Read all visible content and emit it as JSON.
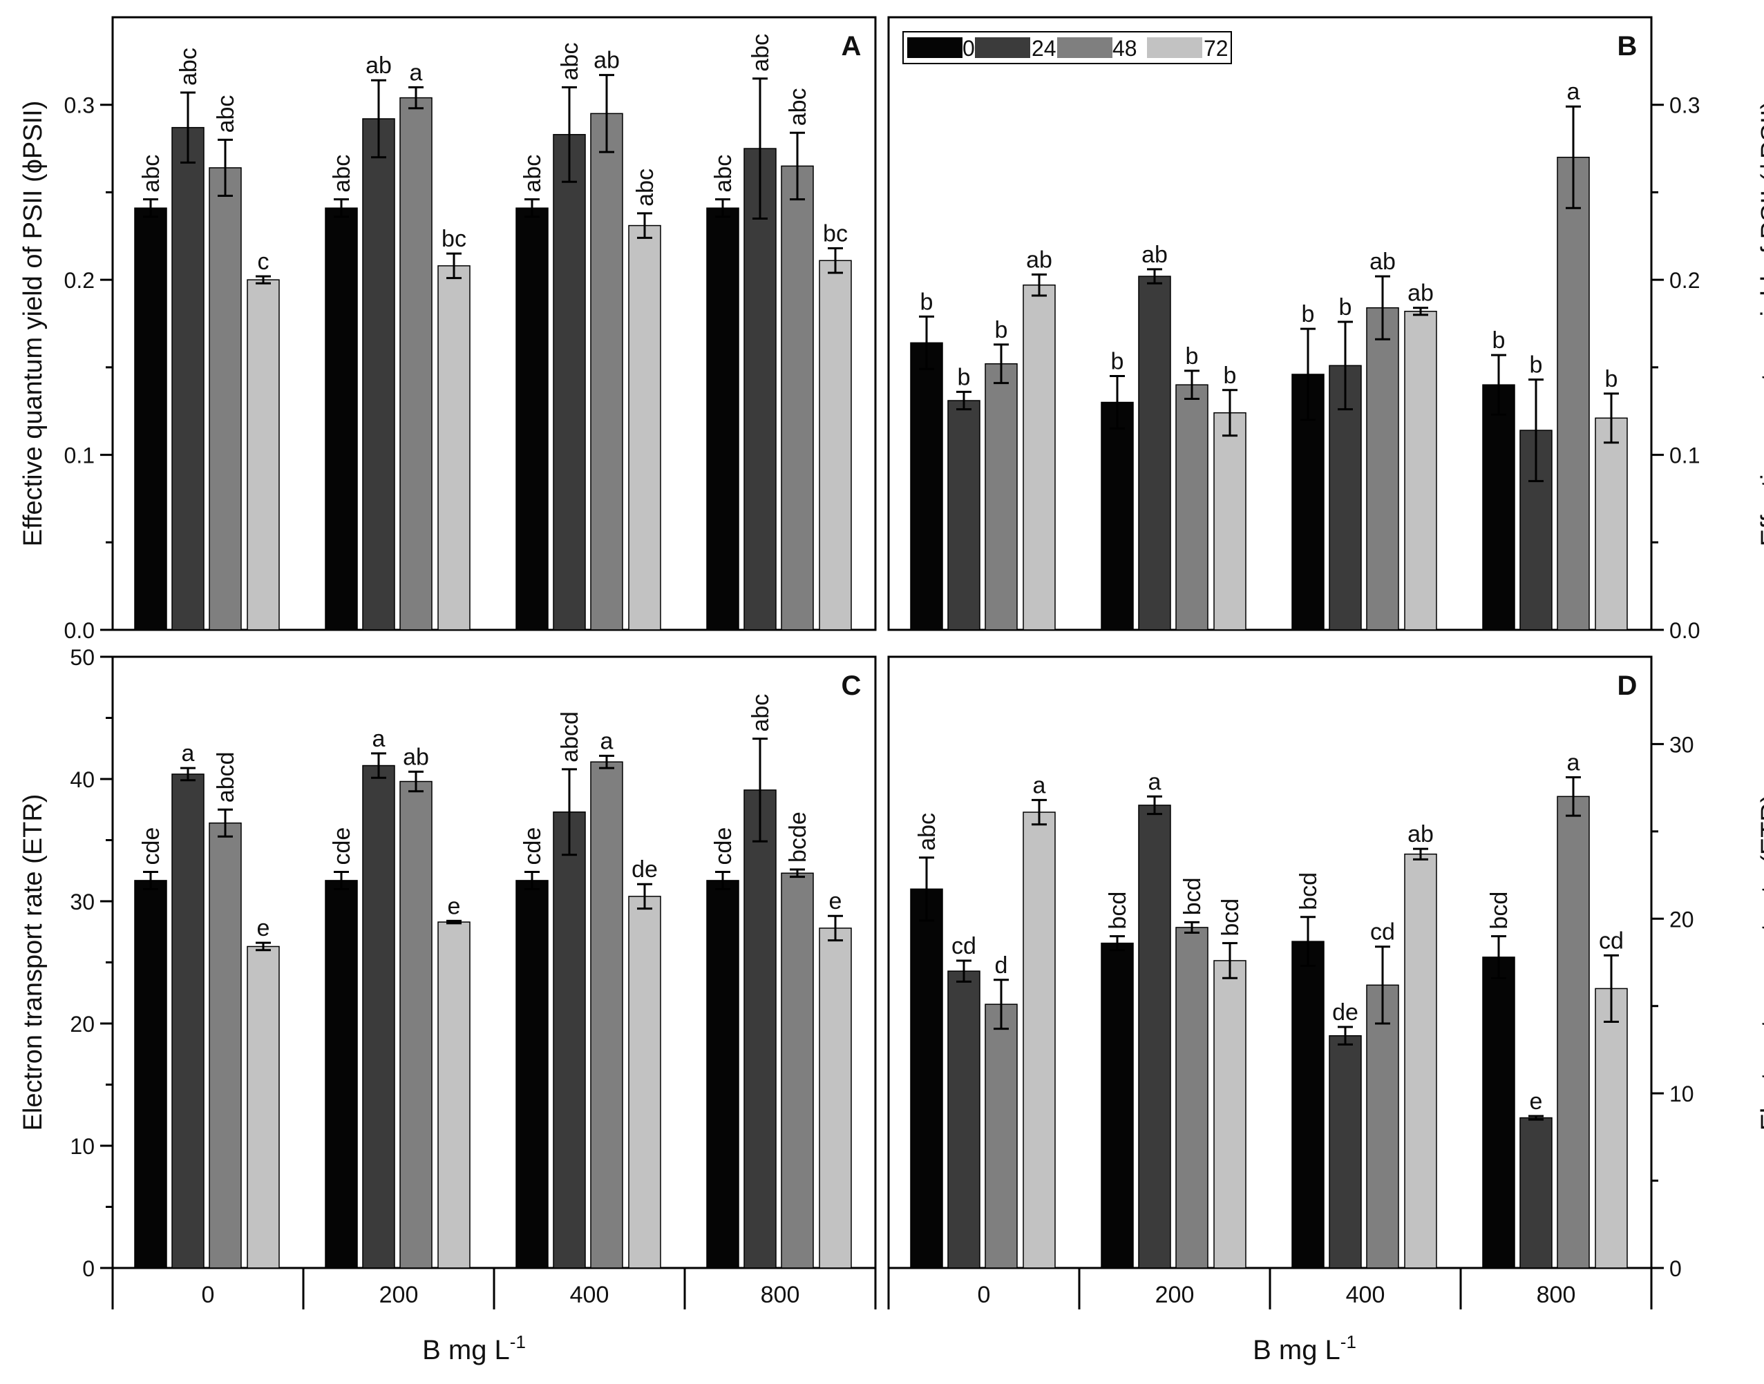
{
  "series_names": [
    "0",
    "24",
    "48",
    "72"
  ],
  "colors": {
    "0": "#050505",
    "24": "#3b3b3b",
    "48": "#7f7f7f",
    "72": "#c2c2c2",
    "axis": "#000000"
  },
  "x_label": "B mg L",
  "x_label_sup": "-1",
  "chart_data": [
    {
      "panel": "A",
      "type": "bar",
      "categories": [
        "0",
        "200",
        "400",
        "800"
      ],
      "ylabel": "Effective quantum yield of PSII (ϕPSII)",
      "y_axis_side": "left",
      "ylim": [
        0,
        0.35
      ],
      "yticks": [
        0.0,
        0.1,
        0.2,
        0.3
      ],
      "ytick_labels": [
        "0.0",
        "0.1",
        "0.2",
        "0.3"
      ],
      "series": [
        {
          "name": "0",
          "values": [
            0.241,
            0.241,
            0.241,
            0.241
          ],
          "errors": [
            0.005,
            0.005,
            0.005,
            0.005
          ],
          "labels": [
            "abc",
            "abc",
            "abc",
            "abc"
          ]
        },
        {
          "name": "24",
          "values": [
            0.287,
            0.292,
            0.283,
            0.275
          ],
          "errors": [
            0.02,
            0.022,
            0.027,
            0.04
          ],
          "labels": [
            "abc",
            "ab",
            "abc",
            "abc"
          ]
        },
        {
          "name": "48",
          "values": [
            0.264,
            0.304,
            0.295,
            0.265
          ],
          "errors": [
            0.016,
            0.006,
            0.022,
            0.019
          ],
          "labels": [
            "abc",
            "a",
            "ab",
            "abc"
          ]
        },
        {
          "name": "72",
          "values": [
            0.2,
            0.208,
            0.231,
            0.211
          ],
          "errors": [
            0.002,
            0.007,
            0.007,
            0.007
          ],
          "labels": [
            "c",
            "bc",
            "abc",
            "bc"
          ]
        }
      ]
    },
    {
      "panel": "B",
      "type": "bar",
      "categories": [
        "0",
        "200",
        "400",
        "800"
      ],
      "ylabel": "Effective quantum yield of PSII (ϕPSII)",
      "y_axis_side": "right",
      "ylim": [
        0,
        0.35
      ],
      "yticks": [
        0.0,
        0.1,
        0.2,
        0.3
      ],
      "ytick_labels": [
        "0.0",
        "0.1",
        "0.2",
        "0.3"
      ],
      "legend": "top-left",
      "series": [
        {
          "name": "0",
          "values": [
            0.164,
            0.13,
            0.146,
            0.14
          ],
          "errors": [
            0.015,
            0.015,
            0.026,
            0.017
          ],
          "labels": [
            "b",
            "b",
            "b",
            "b"
          ]
        },
        {
          "name": "24",
          "values": [
            0.131,
            0.202,
            0.151,
            0.114
          ],
          "errors": [
            0.005,
            0.004,
            0.025,
            0.029
          ],
          "labels": [
            "b",
            "ab",
            "b",
            "b"
          ]
        },
        {
          "name": "48",
          "values": [
            0.152,
            0.14,
            0.184,
            0.27
          ],
          "errors": [
            0.011,
            0.008,
            0.018,
            0.029
          ],
          "labels": [
            "b",
            "b",
            "ab",
            "a"
          ]
        },
        {
          "name": "72",
          "values": [
            0.197,
            0.124,
            0.182,
            0.121
          ],
          "errors": [
            0.006,
            0.013,
            0.002,
            0.014
          ],
          "labels": [
            "ab",
            "b",
            "ab",
            "b"
          ]
        }
      ]
    },
    {
      "panel": "C",
      "type": "bar",
      "categories": [
        "0",
        "200",
        "400",
        "800"
      ],
      "xlabel": "B mg L-1",
      "ylabel": "Electron transport rate (ETR)",
      "y_axis_side": "left",
      "ylim": [
        0,
        50
      ],
      "yticks": [
        0,
        10,
        20,
        30,
        40,
        50
      ],
      "ytick_labels": [
        "0",
        "10",
        "20",
        "30",
        "40",
        "50"
      ],
      "series": [
        {
          "name": "0",
          "values": [
            31.7,
            31.7,
            31.7,
            31.7
          ],
          "errors": [
            0.7,
            0.7,
            0.7,
            0.7
          ],
          "labels": [
            "cde",
            "cde",
            "cde",
            "cde"
          ]
        },
        {
          "name": "24",
          "values": [
            40.4,
            41.1,
            37.3,
            39.1
          ],
          "errors": [
            0.5,
            1.0,
            3.5,
            4.2
          ],
          "labels": [
            "a",
            "a",
            "abcd",
            "abc"
          ]
        },
        {
          "name": "48",
          "values": [
            36.4,
            39.8,
            41.4,
            32.3
          ],
          "errors": [
            1.1,
            0.8,
            0.5,
            0.3
          ],
          "labels": [
            "abcd",
            "ab",
            "a",
            "bcde"
          ]
        },
        {
          "name": "72",
          "values": [
            26.3,
            28.3,
            30.4,
            27.8
          ],
          "errors": [
            0.3,
            0.1,
            1.0,
            1.0
          ],
          "labels": [
            "e",
            "e",
            "de",
            "e"
          ]
        }
      ]
    },
    {
      "panel": "D",
      "type": "bar",
      "categories": [
        "0",
        "200",
        "400",
        "800"
      ],
      "xlabel": "B mg L-1",
      "ylabel": "Electron transport rate (ETR)",
      "y_axis_side": "right",
      "ylim": [
        0,
        35
      ],
      "yticks": [
        0,
        10,
        20,
        30
      ],
      "ytick_labels": [
        "0",
        "10",
        "20",
        "30"
      ],
      "series": [
        {
          "name": "0",
          "values": [
            21.7,
            18.6,
            18.7,
            17.8
          ],
          "errors": [
            1.8,
            0.4,
            1.4,
            1.2
          ],
          "labels": [
            "abc",
            "bcd",
            "bcd",
            "bcd"
          ]
        },
        {
          "name": "24",
          "values": [
            17.0,
            26.5,
            13.3,
            8.6
          ],
          "errors": [
            0.6,
            0.5,
            0.5,
            0.1
          ],
          "labels": [
            "cd",
            "a",
            "de",
            "e"
          ]
        },
        {
          "name": "48",
          "values": [
            15.1,
            19.5,
            16.2,
            27.0
          ],
          "errors": [
            1.4,
            0.3,
            2.2,
            1.1
          ],
          "labels": [
            "d",
            "bcd",
            "cd",
            "a"
          ]
        },
        {
          "name": "72",
          "values": [
            26.1,
            17.6,
            23.7,
            16.0
          ],
          "errors": [
            0.7,
            1.0,
            0.3,
            1.9
          ],
          "labels": [
            "a",
            "bcd",
            "ab",
            "cd"
          ]
        }
      ]
    }
  ]
}
